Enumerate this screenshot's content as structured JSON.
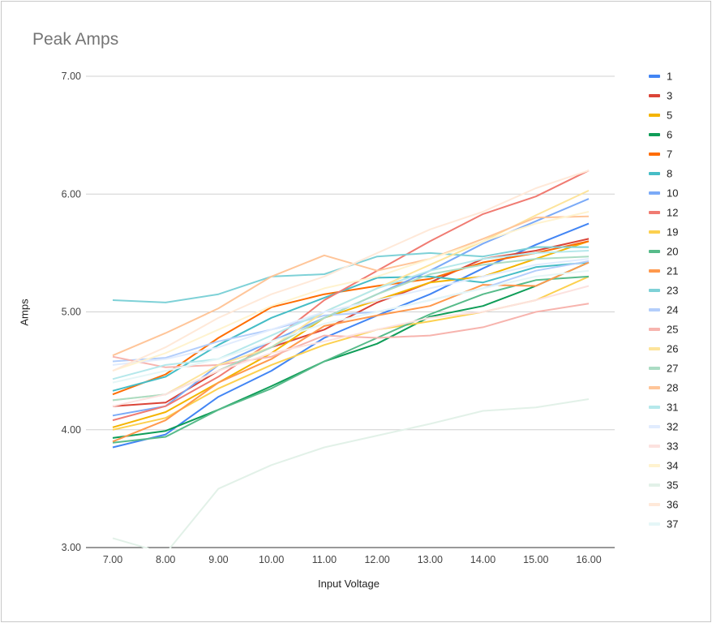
{
  "chart_data": {
    "type": "line",
    "title": "Peak Amps",
    "xlabel": "Input Voltage",
    "ylabel": "Amps",
    "x": [
      7,
      8,
      9,
      10,
      11,
      12,
      13,
      14,
      15,
      16
    ],
    "x_tick_labels": [
      "7.00",
      "8.00",
      "9.00",
      "10.00",
      "11.00",
      "12.00",
      "13.00",
      "14.00",
      "15.00",
      "16.00"
    ],
    "y_tick_labels": [
      "3.00",
      "4.00",
      "5.00",
      "6.00",
      "7.00"
    ],
    "y_ticks": [
      3,
      4,
      5,
      6,
      7
    ],
    "ylim": [
      3,
      7
    ],
    "xlim": [
      7,
      16
    ],
    "grid": true,
    "legend_position": "right",
    "series": [
      {
        "name": "1",
        "color": "#4285f4",
        "values": [
          3.85,
          3.96,
          4.28,
          4.5,
          4.78,
          4.97,
          5.15,
          5.37,
          5.57,
          5.75
        ]
      },
      {
        "name": "3",
        "color": "#db4437",
        "values": [
          4.2,
          4.23,
          4.5,
          4.7,
          4.85,
          5.08,
          5.25,
          5.45,
          5.52,
          5.62
        ]
      },
      {
        "name": "5",
        "color": "#f4b400",
        "values": [
          4.02,
          4.15,
          4.4,
          4.65,
          4.95,
          5.1,
          5.25,
          5.3,
          5.45,
          5.6
        ]
      },
      {
        "name": "6",
        "color": "#0f9d58",
        "values": [
          3.93,
          3.99,
          4.17,
          4.37,
          4.58,
          4.73,
          4.96,
          5.05,
          5.22,
          5.42
        ]
      },
      {
        "name": "7",
        "color": "#ff6d01",
        "values": [
          4.3,
          4.47,
          4.78,
          5.04,
          5.15,
          5.22,
          5.28,
          5.42,
          5.5,
          5.6
        ]
      },
      {
        "name": "8",
        "color": "#46bdc6",
        "values": [
          4.33,
          4.45,
          4.72,
          4.95,
          5.12,
          5.29,
          5.3,
          5.25,
          5.38,
          5.42
        ]
      },
      {
        "name": "10",
        "color": "#7baaf7",
        "values": [
          4.12,
          4.2,
          4.55,
          4.75,
          4.95,
          5.15,
          5.35,
          5.58,
          5.77,
          5.96
        ]
      },
      {
        "name": "12",
        "color": "#f07b72",
        "values": [
          4.08,
          4.2,
          4.45,
          4.75,
          5.1,
          5.35,
          5.6,
          5.83,
          5.98,
          6.2
        ]
      },
      {
        "name": "19",
        "color": "#fcd04f",
        "values": [
          4.0,
          4.1,
          4.35,
          4.55,
          4.72,
          4.85,
          4.92,
          5.0,
          5.1,
          5.3
        ]
      },
      {
        "name": "20",
        "color": "#57bb8a",
        "values": [
          3.89,
          3.94,
          4.17,
          4.35,
          4.58,
          4.78,
          4.98,
          5.15,
          5.27,
          5.3
        ]
      },
      {
        "name": "21",
        "color": "#ff994d",
        "values": [
          3.9,
          4.08,
          4.4,
          4.6,
          4.88,
          4.97,
          5.05,
          5.23,
          5.22,
          5.42
        ]
      },
      {
        "name": "23",
        "color": "#7ed1d7",
        "values": [
          5.1,
          5.08,
          5.15,
          5.3,
          5.32,
          5.47,
          5.5,
          5.47,
          5.55,
          5.55
        ]
      },
      {
        "name": "24",
        "color": "#b3cefb",
        "values": [
          4.58,
          4.61,
          4.75,
          4.85,
          4.97,
          5.0,
          5.1,
          5.2,
          5.35,
          5.43
        ]
      },
      {
        "name": "25",
        "color": "#f7b4ae",
        "values": [
          4.62,
          4.53,
          4.55,
          4.62,
          4.8,
          4.78,
          4.8,
          4.87,
          5.0,
          5.07
        ]
      },
      {
        "name": "26",
        "color": "#fde49b",
        "values": [
          4.25,
          4.3,
          4.55,
          4.7,
          5.0,
          5.2,
          5.4,
          5.6,
          5.82,
          6.03
        ]
      },
      {
        "name": "27",
        "color": "#abdcc4",
        "values": [
          4.25,
          4.3,
          4.5,
          4.7,
          4.95,
          5.15,
          5.32,
          5.4,
          5.45,
          5.47
        ]
      },
      {
        "name": "28",
        "color": "#ffc599",
        "values": [
          4.63,
          4.82,
          5.03,
          5.3,
          5.48,
          5.35,
          5.45,
          5.62,
          5.8,
          5.81
        ]
      },
      {
        "name": "31",
        "color": "#b5e8eb",
        "values": [
          4.43,
          4.55,
          4.6,
          4.8,
          5.0,
          5.2,
          5.35,
          5.45,
          5.5,
          5.52
        ]
      },
      {
        "name": "32",
        "color": "#e1ecfe",
        "values": [
          4.55,
          4.6,
          4.7,
          4.85,
          5.0,
          5.1,
          5.2,
          5.3,
          5.4,
          5.45
        ]
      },
      {
        "name": "33",
        "color": "#fce2df",
        "values": [
          4.2,
          4.3,
          4.5,
          4.65,
          4.75,
          4.85,
          4.95,
          5.0,
          5.1,
          5.22
        ]
      },
      {
        "name": "34",
        "color": "#fff3cf",
        "values": [
          4.5,
          4.65,
          4.85,
          5.05,
          5.2,
          5.3,
          5.45,
          5.6,
          5.75,
          5.85
        ]
      },
      {
        "name": "35",
        "color": "#e2f1e8",
        "values": [
          3.08,
          2.95,
          3.5,
          3.7,
          3.85,
          3.95,
          4.05,
          4.16,
          4.19,
          4.26
        ]
      },
      {
        "name": "36",
        "color": "#ffe9d9",
        "values": [
          4.5,
          4.7,
          4.95,
          5.15,
          5.3,
          5.5,
          5.7,
          5.85,
          6.05,
          6.2
        ]
      },
      {
        "name": "37",
        "color": "#e5f6f7",
        "values": [
          4.4,
          4.5,
          4.6,
          4.75,
          4.9,
          5.0,
          5.1,
          5.2,
          5.3,
          5.35
        ]
      }
    ]
  }
}
